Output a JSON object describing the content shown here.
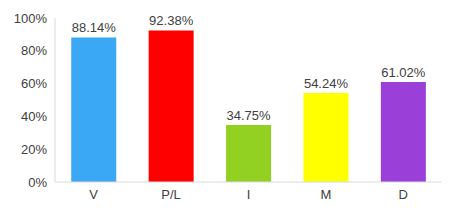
{
  "chart_data": {
    "type": "bar",
    "categories": [
      "V",
      "P/L",
      "I",
      "M",
      "D"
    ],
    "values": [
      88.14,
      92.38,
      34.75,
      54.24,
      61.02
    ],
    "value_labels": [
      "88.14%",
      "92.38%",
      "34.75%",
      "54.24%",
      "61.02%"
    ],
    "colors": [
      "#3aa8f5",
      "#ff0000",
      "#92d022",
      "#ffff00",
      "#9a3fd8"
    ],
    "ylim": [
      0,
      100
    ],
    "yticks": [
      {
        "value": 0,
        "label": "0%"
      },
      {
        "value": 20,
        "label": "20%"
      },
      {
        "value": 40,
        "label": "40%"
      },
      {
        "value": 60,
        "label": "60%"
      },
      {
        "value": 80,
        "label": "80%"
      },
      {
        "value": 100,
        "label": "100%"
      }
    ],
    "grid": false,
    "data_labels": true
  }
}
